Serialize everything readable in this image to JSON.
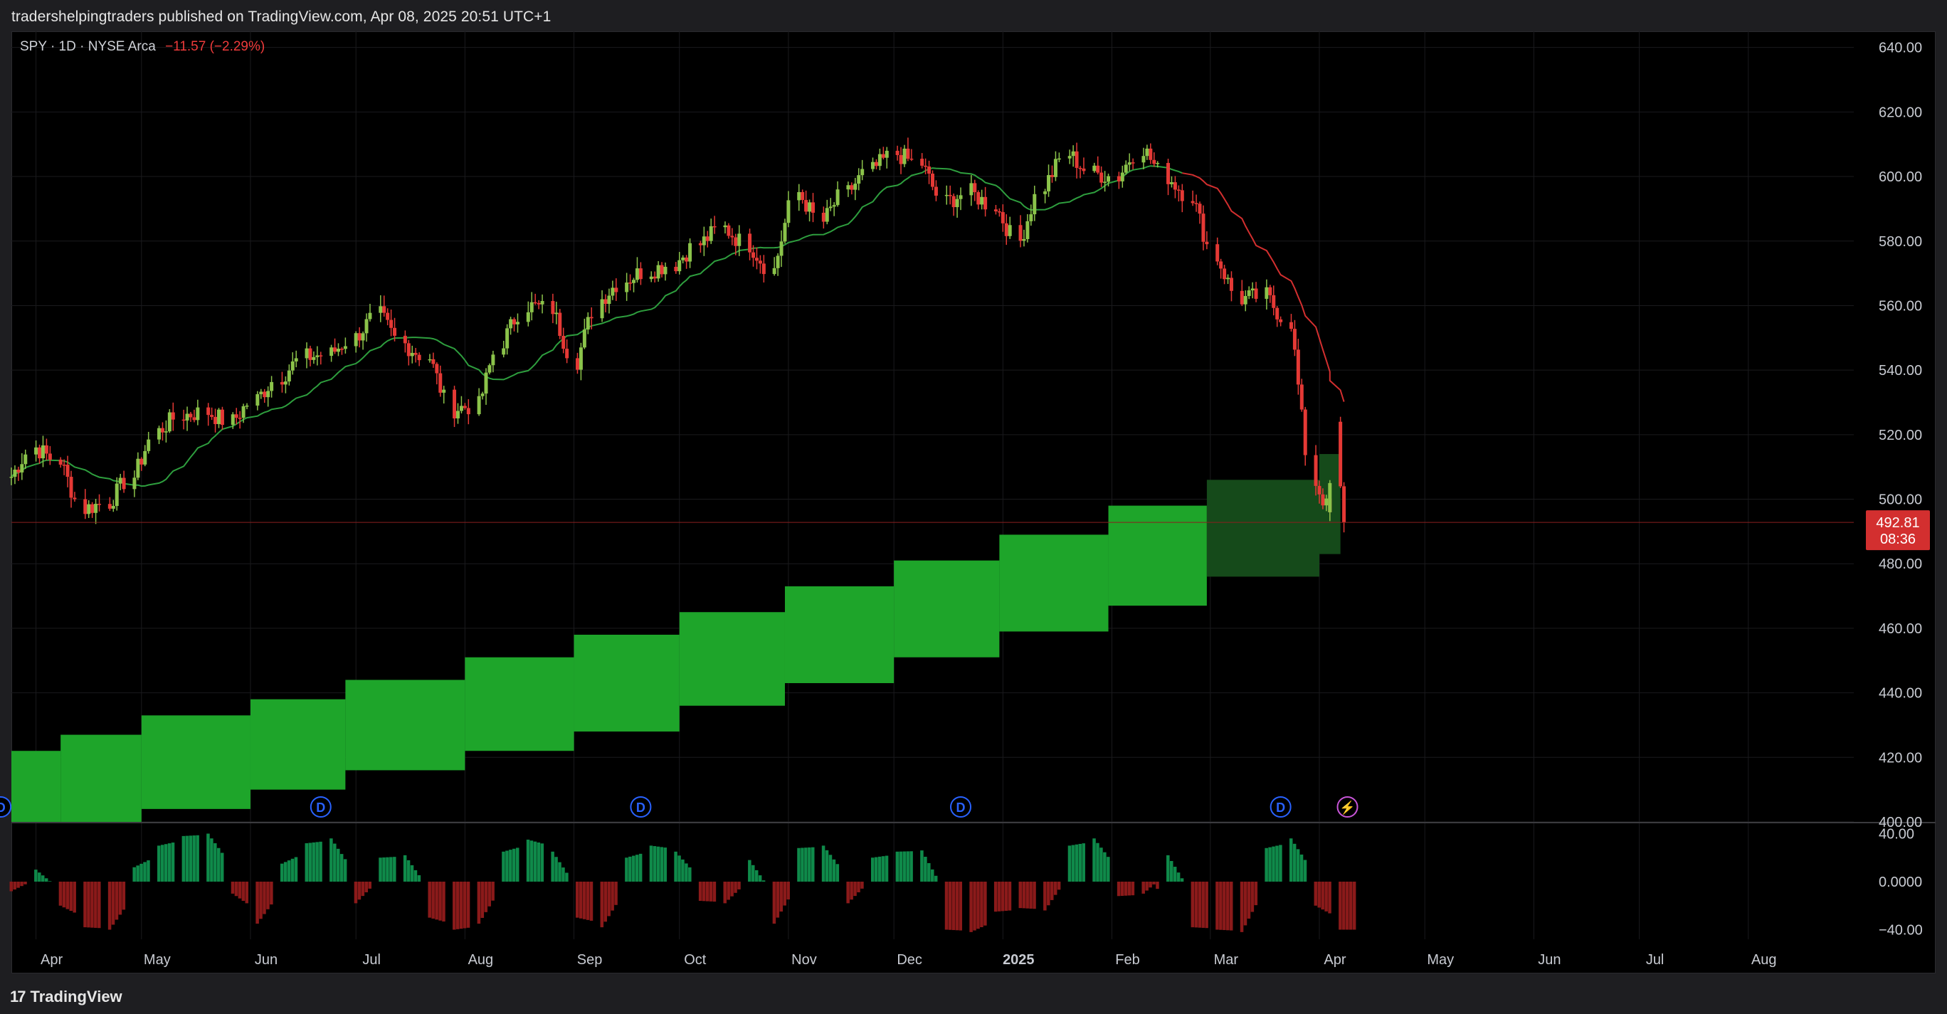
{
  "header": {
    "published_text": "tradershelpingtraders published on TradingView.com, Apr 08, 2025 20:51 UTC+1"
  },
  "legend": {
    "symbol": "SPY · 1D · NYSE Arca",
    "change": "−11.57 (−2.29%)"
  },
  "price_label": {
    "price": "492.81",
    "countdown": "08:36"
  },
  "footer": {
    "logo_text": "17",
    "brand": "TradingView"
  },
  "colors": {
    "up": "#8bc34a",
    "down": "#e53935",
    "ma_up": "#2e9e3e",
    "ma_down": "#d32f2f",
    "band": "#1ea52a",
    "band_future": "#154a1a",
    "osc_pos": "#0f8a4a",
    "osc_neg": "#8b1a1a",
    "event_div": "#2962ff",
    "event_split": "#c855d8"
  },
  "chart_data": [
    {
      "type": "candlestick",
      "title": "SPY · 1D · NYSE Arca",
      "y_axis_ticks": [
        "640.00",
        "620.00",
        "600.00",
        "580.00",
        "560.00",
        "540.00",
        "520.00",
        "500.00",
        "480.00",
        "460.00",
        "440.00",
        "420.00",
        "400.00"
      ],
      "ylim": [
        400,
        645
      ],
      "x_axis_ticks": [
        "Apr",
        "May",
        "Jun",
        "Jul",
        "Aug",
        "Sep",
        "Oct",
        "Nov",
        "Dec",
        "2025",
        "Feb",
        "Mar",
        "Apr",
        "May",
        "Jun",
        "Jul",
        "Aug"
      ],
      "x_range": [
        "2024-03-25",
        "2025-08-31"
      ],
      "last_price": 492.81,
      "weekly_close_path": [
        [
          "2024-03-25",
          507
        ],
        [
          "2024-04-01",
          516
        ],
        [
          "2024-04-08",
          512
        ],
        [
          "2024-04-15",
          497
        ],
        [
          "2024-04-22",
          499
        ],
        [
          "2024-04-29",
          507
        ],
        [
          "2024-05-06",
          521
        ],
        [
          "2024-05-13",
          526
        ],
        [
          "2024-05-20",
          527
        ],
        [
          "2024-05-27",
          524
        ],
        [
          "2024-06-03",
          531
        ],
        [
          "2024-06-10",
          538
        ],
        [
          "2024-06-17",
          544
        ],
        [
          "2024-06-24",
          545
        ],
        [
          "2024-07-01",
          550
        ],
        [
          "2024-07-08",
          557
        ],
        [
          "2024-07-15",
          548
        ],
        [
          "2024-07-22",
          544
        ],
        [
          "2024-07-29",
          528
        ],
        [
          "2024-08-05",
          529
        ],
        [
          "2024-08-12",
          549
        ],
        [
          "2024-08-19",
          560
        ],
        [
          "2024-08-26",
          559
        ],
        [
          "2024-09-02",
          543
        ],
        [
          "2024-09-09",
          562
        ],
        [
          "2024-09-16",
          568
        ],
        [
          "2024-09-23",
          571
        ],
        [
          "2024-09-30",
          573
        ],
        [
          "2024-10-07",
          579
        ],
        [
          "2024-10-14",
          584
        ],
        [
          "2024-10-21",
          579
        ],
        [
          "2024-10-28",
          571
        ],
        [
          "2024-11-04",
          595
        ],
        [
          "2024-11-11",
          586
        ],
        [
          "2024-11-18",
          595
        ],
        [
          "2024-11-25",
          602
        ],
        [
          "2024-12-02",
          607
        ],
        [
          "2024-12-09",
          604
        ],
        [
          "2024-12-16",
          592
        ],
        [
          "2024-12-23",
          595
        ],
        [
          "2024-12-30",
          591
        ],
        [
          "2025-01-06",
          580
        ],
        [
          "2025-01-13",
          597
        ],
        [
          "2025-01-20",
          607
        ],
        [
          "2025-01-27",
          601
        ],
        [
          "2025-02-03",
          600
        ],
        [
          "2025-02-10",
          609
        ],
        [
          "2025-02-17",
          600
        ],
        [
          "2025-02-24",
          594
        ],
        [
          "2025-03-03",
          575
        ],
        [
          "2025-03-10",
          562
        ],
        [
          "2025-03-17",
          563
        ],
        [
          "2025-03-24",
          555
        ],
        [
          "2025-03-31",
          505
        ],
        [
          "2025-04-07",
          492.81
        ]
      ],
      "moving_average_turns_red": "2025-02-21",
      "support_band": [
        {
          "start": "2024-03-25",
          "end": "2024-04-08",
          "low": 400,
          "high": 422
        },
        {
          "start": "2024-04-08",
          "end": "2024-05-01",
          "low": 400,
          "high": 427
        },
        {
          "start": "2024-05-01",
          "end": "2024-06-01",
          "low": 404,
          "high": 433
        },
        {
          "start": "2024-06-01",
          "end": "2024-06-28",
          "low": 410,
          "high": 438
        },
        {
          "start": "2024-06-28",
          "end": "2024-08-01",
          "low": 416,
          "high": 444
        },
        {
          "start": "2024-08-01",
          "end": "2024-09-01",
          "low": 422,
          "high": 451
        },
        {
          "start": "2024-09-01",
          "end": "2024-10-01",
          "low": 428,
          "high": 458
        },
        {
          "start": "2024-10-01",
          "end": "2024-10-31",
          "low": 436,
          "high": 465
        },
        {
          "start": "2024-10-31",
          "end": "2024-12-01",
          "low": 443,
          "high": 473
        },
        {
          "start": "2024-12-01",
          "end": "2024-12-31",
          "low": 451,
          "high": 481
        },
        {
          "start": "2024-12-31",
          "end": "2025-01-31",
          "low": 459,
          "high": 489
        },
        {
          "start": "2025-01-31",
          "end": "2025-02-28",
          "low": 467,
          "high": 498
        }
      ],
      "projected_band": [
        {
          "start": "2025-02-28",
          "end": "2025-04-01",
          "low": 476,
          "high": 506
        },
        {
          "start": "2025-04-01",
          "end": "2025-04-07",
          "low": 483,
          "high": 514
        }
      ],
      "event_markers": [
        {
          "date": "2024-03-22",
          "label": "D",
          "kind": "dividend"
        },
        {
          "date": "2024-06-21",
          "label": "D",
          "kind": "dividend"
        },
        {
          "date": "2024-09-20",
          "label": "D",
          "kind": "dividend"
        },
        {
          "date": "2024-12-20",
          "label": "D",
          "kind": "dividend"
        },
        {
          "date": "2025-03-21",
          "label": "D",
          "kind": "dividend"
        },
        {
          "date": "2025-04-09",
          "label": "⚡",
          "kind": "earnings"
        }
      ]
    },
    {
      "type": "bar",
      "title": "",
      "y_axis_ticks": [
        "40.00",
        "0.0000",
        "−40.00"
      ],
      "ylim": [
        -48,
        48
      ],
      "oscillator_weekly": [
        [
          "2024-03-25",
          -8
        ],
        [
          "2024-04-01",
          10
        ],
        [
          "2024-04-08",
          -20
        ],
        [
          "2024-04-15",
          -38
        ],
        [
          "2024-04-22",
          -40
        ],
        [
          "2024-04-29",
          12
        ],
        [
          "2024-05-06",
          30
        ],
        [
          "2024-05-13",
          38
        ],
        [
          "2024-05-20",
          40
        ],
        [
          "2024-05-27",
          -10
        ],
        [
          "2024-06-03",
          -35
        ],
        [
          "2024-06-10",
          15
        ],
        [
          "2024-06-17",
          32
        ],
        [
          "2024-06-24",
          36
        ],
        [
          "2024-07-01",
          -18
        ],
        [
          "2024-07-08",
          20
        ],
        [
          "2024-07-15",
          22
        ],
        [
          "2024-07-22",
          -30
        ],
        [
          "2024-07-29",
          -40
        ],
        [
          "2024-08-05",
          -35
        ],
        [
          "2024-08-12",
          25
        ],
        [
          "2024-08-19",
          35
        ],
        [
          "2024-08-26",
          25
        ],
        [
          "2024-09-02",
          -30
        ],
        [
          "2024-09-09",
          -38
        ],
        [
          "2024-09-16",
          20
        ],
        [
          "2024-09-23",
          30
        ],
        [
          "2024-09-30",
          25
        ],
        [
          "2024-10-07",
          -16
        ],
        [
          "2024-10-14",
          -18
        ],
        [
          "2024-10-21",
          18
        ],
        [
          "2024-10-28",
          -35
        ],
        [
          "2024-11-04",
          28
        ],
        [
          "2024-11-11",
          30
        ],
        [
          "2024-11-18",
          -18
        ],
        [
          "2024-11-25",
          20
        ],
        [
          "2024-12-02",
          25
        ],
        [
          "2024-12-09",
          26
        ],
        [
          "2024-12-16",
          -40
        ],
        [
          "2024-12-23",
          -42
        ],
        [
          "2024-12-30",
          -25
        ],
        [
          "2025-01-06",
          -22
        ],
        [
          "2025-01-13",
          -24
        ],
        [
          "2025-01-20",
          30
        ],
        [
          "2025-01-27",
          36
        ],
        [
          "2025-02-03",
          -12
        ],
        [
          "2025-02-10",
          -10
        ],
        [
          "2025-02-17",
          22
        ],
        [
          "2025-02-24",
          -38
        ],
        [
          "2025-03-03",
          -40
        ],
        [
          "2025-03-10",
          -42
        ],
        [
          "2025-03-17",
          28
        ],
        [
          "2025-03-24",
          36
        ],
        [
          "2025-03-31",
          -20
        ],
        [
          "2025-04-07",
          -40
        ]
      ]
    }
  ]
}
